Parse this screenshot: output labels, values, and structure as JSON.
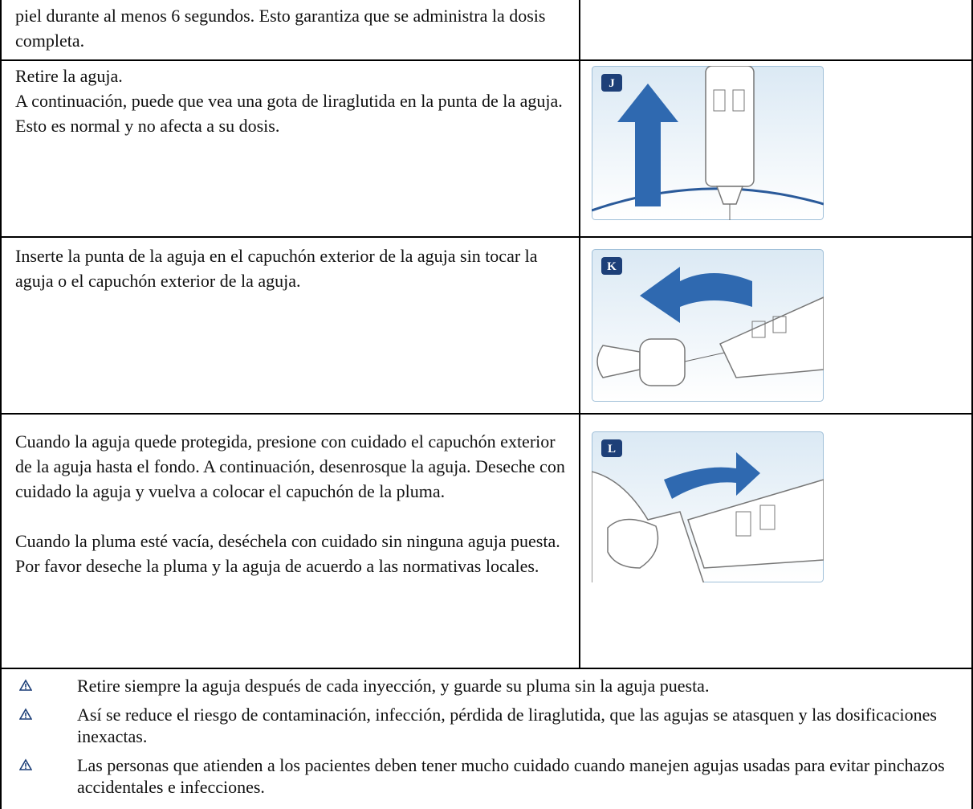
{
  "rows": [
    {
      "paragraphs": [
        "piel durante al menos 6 segundos. Esto garantiza que se administra la dosis completa."
      ]
    },
    {
      "paragraphs": [
        "Retire la aguja.",
        "A continuación, puede que vea una gota de liraglutida en la punta de la aguja.",
        "Esto es normal y no afecta a su dosis."
      ],
      "figure_label": "J"
    },
    {
      "paragraphs": [
        "Inserte la punta de la aguja en el capuchón exterior de la aguja sin tocar la aguja o el capuchón exterior de la aguja."
      ],
      "figure_label": "K"
    },
    {
      "paragraphs": [
        "Cuando la aguja quede protegida, presione con cuidado el capuchón exterior de la aguja hasta el fondo. A continuación, desenrosque la aguja. Deseche con cuidado la aguja y vuelva a colocar el capuchón de la pluma.",
        "Cuando la pluma esté vacía, deséchela con cuidado sin ninguna aguja puesta. Por favor deseche la pluma y la aguja de acuerdo a las normativas locales."
      ],
      "figure_label": "L"
    }
  ],
  "warnings": [
    "Retire siempre la aguja después de cada inyección, y guarde su pluma sin la aguja puesta.",
    "Así se reduce el riesgo de contaminación, infección, pérdida de liraglutida, que las agujas se atasquen y las dosificaciones inexactas.",
    "Las personas que atienden a los pacientes deben tener mucho cuidado cuando manejen agujas usadas para evitar pinchazos accidentales e infecciones."
  ]
}
